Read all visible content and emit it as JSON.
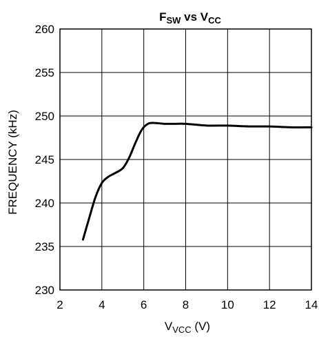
{
  "chart_data": {
    "type": "line",
    "title_main": "F",
    "title_main_sub": "SW",
    "title_mid": " vs V",
    "title_mid_sub": "CC",
    "xlabel_main": "V",
    "xlabel_sub": "VCC",
    "xlabel_unit": " (V)",
    "ylabel": "FREQUENCY (kHz)",
    "xlim": [
      2,
      14
    ],
    "ylim": [
      230,
      260
    ],
    "xticks": [
      2,
      4,
      6,
      8,
      10,
      12,
      14
    ],
    "yticks": [
      230,
      235,
      240,
      245,
      250,
      255,
      260
    ],
    "xtick_labels": [
      "2",
      "4",
      "6",
      "8",
      "10",
      "12",
      "14"
    ],
    "ytick_labels": [
      "230",
      "235",
      "240",
      "245",
      "250",
      "255",
      "260"
    ],
    "grid": true,
    "series": [
      {
        "line_color": "#000000",
        "x": [
          3.1,
          3.4,
          3.7,
          4.0,
          4.3,
          4.6,
          5.0,
          5.3,
          5.6,
          5.9,
          6.2,
          6.5,
          7.0,
          7.5,
          8.0,
          9.0,
          10.0,
          11.0,
          12.0,
          13.0,
          14.0
        ],
        "y": [
          235.8,
          238.3,
          240.7,
          242.3,
          243.0,
          243.4,
          244.0,
          245.2,
          246.9,
          248.4,
          249.1,
          249.2,
          249.1,
          249.1,
          249.1,
          248.9,
          248.9,
          248.8,
          248.8,
          248.7,
          248.7
        ]
      }
    ]
  }
}
